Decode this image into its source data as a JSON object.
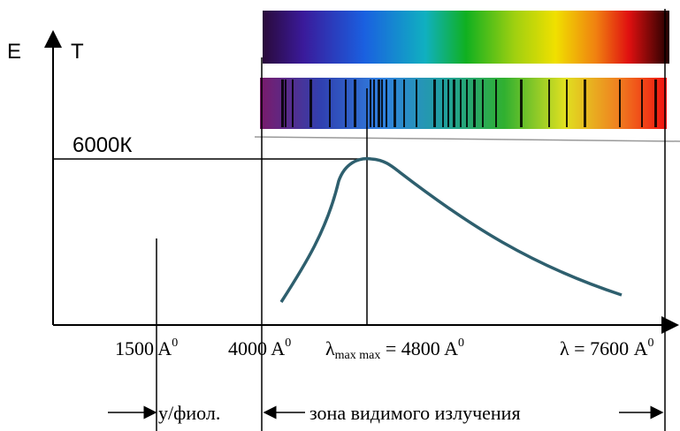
{
  "axes": {
    "y_label": "E",
    "y_label2": "T"
  },
  "temperature_label": "6000К",
  "wavelengths": [
    {
      "prefix": "",
      "sub": "",
      "main": "1500 A",
      "sup": "0"
    },
    {
      "prefix": "",
      "sub": "",
      "main": "4000 A",
      "sup": "0"
    },
    {
      "prefix": "λ",
      "sub": "max max",
      "main": " = 4800 A",
      "sup": "0"
    },
    {
      "prefix": "λ",
      "sub": "",
      "main": " = 7600 A",
      "sup": "0"
    }
  ],
  "zones": {
    "uv": "у/фиол.",
    "visible": "зона видимого излучения"
  }
}
